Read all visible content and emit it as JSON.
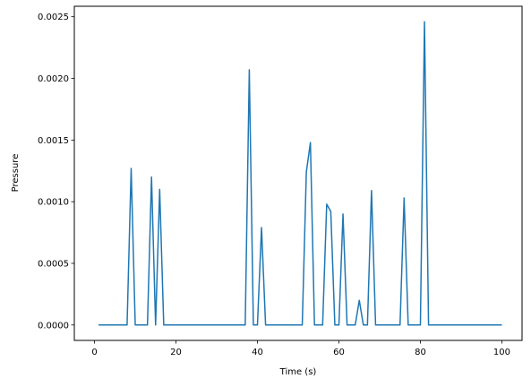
{
  "chart_data": {
    "type": "line",
    "title": "",
    "xlabel": "Time (s)",
    "ylabel": "Pressure",
    "xlim": [
      -4.95,
      104.95
    ],
    "ylim": [
      -0.000125,
      0.002585
    ],
    "grid": false,
    "legend": "none",
    "xticks": [
      0,
      20,
      40,
      60,
      80,
      100
    ],
    "xtick_labels": [
      "0",
      "20",
      "40",
      "60",
      "80",
      "100"
    ],
    "yticks": [
      0.0,
      0.0005,
      0.001,
      0.0015,
      0.002,
      0.0025
    ],
    "ytick_labels": [
      "0.0000",
      "0.0005",
      "0.0010",
      "0.0015",
      "0.0020",
      "0.0025"
    ],
    "series": [
      {
        "color": "#1f77b4",
        "x": [
          1,
          2,
          3,
          4,
          5,
          6,
          7,
          8,
          9,
          10,
          11,
          12,
          13,
          14,
          15,
          16,
          17,
          18,
          19,
          20,
          21,
          22,
          23,
          24,
          25,
          26,
          27,
          28,
          29,
          30,
          31,
          32,
          33,
          34,
          35,
          36,
          37,
          38,
          39,
          40,
          41,
          42,
          43,
          44,
          45,
          46,
          47,
          48,
          49,
          50,
          51,
          52,
          53,
          54,
          55,
          56,
          57,
          58,
          59,
          60,
          61,
          62,
          63,
          64,
          65,
          66,
          67,
          68,
          69,
          70,
          71,
          72,
          73,
          74,
          75,
          76,
          77,
          78,
          79,
          80,
          81,
          82,
          83,
          84,
          85,
          86,
          87,
          88,
          89,
          90,
          91,
          92,
          93,
          94,
          95,
          96,
          97,
          98,
          99,
          100
        ],
        "y": [
          0,
          0,
          0,
          0,
          0,
          0,
          0,
          0,
          0.00127,
          0,
          0,
          0,
          0,
          0.0012,
          0,
          0.0011,
          0,
          0,
          0,
          0,
          0,
          0,
          0,
          0,
          0,
          0,
          0,
          0,
          0,
          0,
          0,
          0,
          0,
          0,
          0,
          0,
          0,
          0.00207,
          0,
          0,
          0.00079,
          0,
          0,
          0,
          0,
          0,
          0,
          0,
          0,
          0,
          0,
          0.00124,
          0.00148,
          0,
          0,
          0,
          0.00098,
          0.00092,
          0,
          0,
          0.0009,
          0,
          0,
          0,
          0.0002,
          0,
          0,
          0.00109,
          0,
          0,
          0,
          0,
          0,
          0,
          0,
          0.00103,
          0,
          0,
          0,
          0,
          0.00246,
          0,
          0,
          0,
          0,
          0,
          0,
          0,
          0,
          0,
          0,
          0,
          0,
          0,
          0,
          0,
          0,
          0,
          0,
          0
        ]
      }
    ]
  }
}
